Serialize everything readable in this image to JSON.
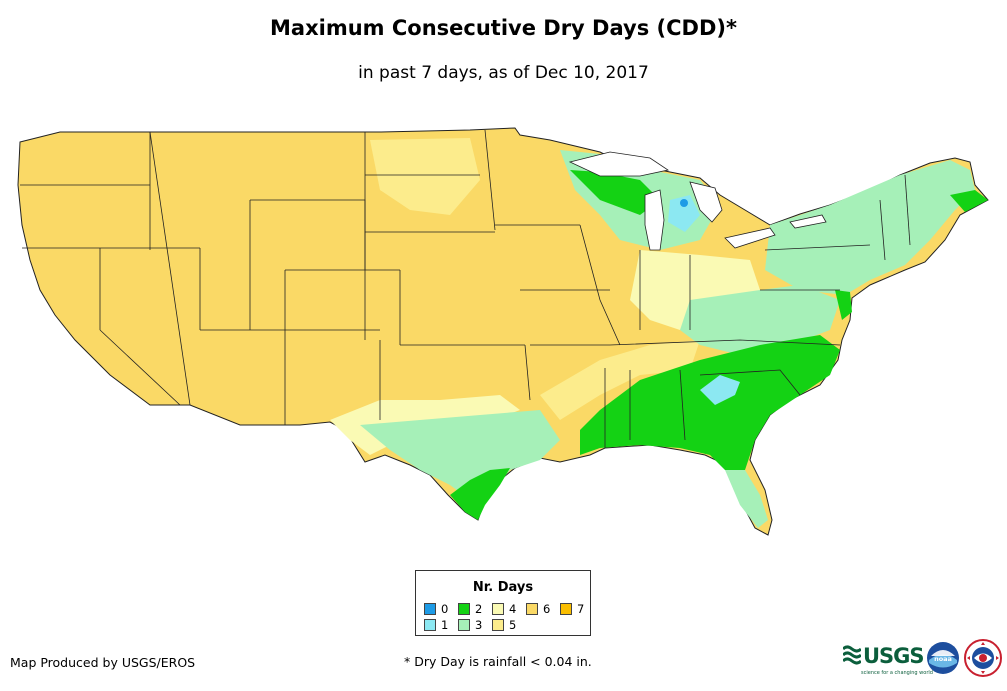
{
  "title": "Maximum Consecutive Dry Days (CDD)*",
  "subtitle": "in past 7 days, as of Dec 10, 2017",
  "legend": {
    "title": "Nr. Days",
    "items": [
      {
        "label": "0",
        "color": "#1e9be6"
      },
      {
        "label": "1",
        "color": "#8ce8f2"
      },
      {
        "label": "2",
        "color": "#14d214"
      },
      {
        "label": "3",
        "color": "#a6f0b8"
      },
      {
        "label": "4",
        "color": "#fafab4"
      },
      {
        "label": "5",
        "color": "#fcec8c"
      },
      {
        "label": "6",
        "color": "#fad966"
      },
      {
        "label": "7",
        "color": "#fabe00"
      }
    ]
  },
  "credit": "Map Produced by USGS/EROS",
  "footnote": "* Dry Day is rainfall < 0.04 in.",
  "logos": {
    "usgs": "USGS",
    "usgs_tagline": "science for a changing world",
    "noaa": "noaa",
    "nws": "NATIONAL WEATHER SERVICE"
  }
}
